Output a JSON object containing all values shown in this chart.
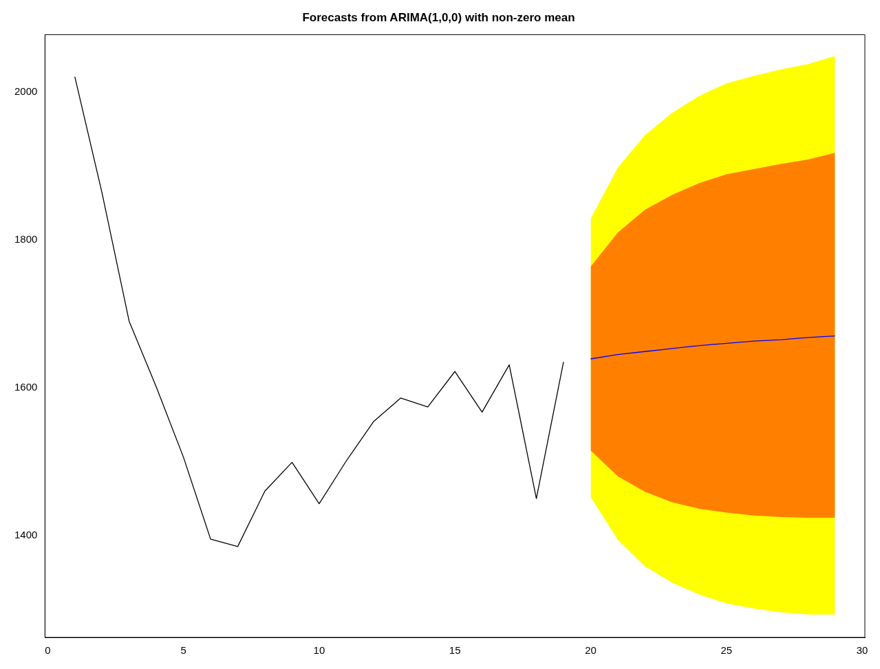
{
  "chart_data": {
    "type": "line",
    "title": "Forecasts from ARIMA(1,0,0) with non-zero mean",
    "xlim": [
      -0.1,
      30.1
    ],
    "xticks": [
      0,
      5,
      10,
      15,
      20,
      25,
      30
    ],
    "ylim": [
      1262,
      2078
    ],
    "yticks": [
      1400,
      1600,
      1800,
      2000
    ],
    "grid": false,
    "legend": false,
    "marker": "none",
    "line_style": "solid",
    "series": [
      {
        "type": "area",
        "color": "#ffff00",
        "x": [
          20,
          21,
          22,
          23,
          24,
          25,
          26,
          27,
          28,
          29
        ],
        "values": [
          null,
          null,
          null,
          null,
          null,
          null,
          null,
          null,
          null,
          null
        ],
        "lower": [
          1452,
          1394,
          1358,
          1336,
          1320,
          1308,
          1301,
          1296,
          1293,
          1293
        ],
        "upper": [
          1829,
          1898,
          1942,
          1972,
          1995,
          2012,
          2022,
          2031,
          2038,
          2049
        ]
      },
      {
        "type": "area",
        "color": "#ff8000",
        "x": [
          20,
          21,
          22,
          23,
          24,
          25,
          26,
          27,
          28,
          29
        ],
        "values": [
          null,
          null,
          null,
          null,
          null,
          null,
          null,
          null,
          null,
          null
        ],
        "lower": [
          1515,
          1480,
          1459,
          1445,
          1436,
          1431,
          1427,
          1425,
          1424,
          1424
        ],
        "upper": [
          1764,
          1810,
          1841,
          1861,
          1877,
          1889,
          1896,
          1903,
          1909,
          1918
        ]
      },
      {
        "type": "line",
        "color": "#000000",
        "x": [
          1,
          2,
          3,
          4,
          5,
          6,
          7,
          8,
          9,
          10,
          11,
          12,
          13,
          14,
          15,
          16,
          17,
          18,
          19
        ],
        "values": [
          2021,
          1864,
          1690,
          1601,
          1506,
          1395,
          1385,
          1460,
          1499,
          1443,
          1501,
          1554,
          1586,
          1574,
          1622,
          1567,
          1631,
          1450,
          1635
        ]
      },
      {
        "type": "line",
        "color": "#0000ff",
        "x": [
          20,
          21,
          22,
          23,
          24,
          25,
          26,
          27,
          28,
          29
        ],
        "values": [
          1639,
          1645,
          1649,
          1653,
          1657,
          1660,
          1663,
          1665,
          1668,
          1670
        ]
      }
    ]
  }
}
